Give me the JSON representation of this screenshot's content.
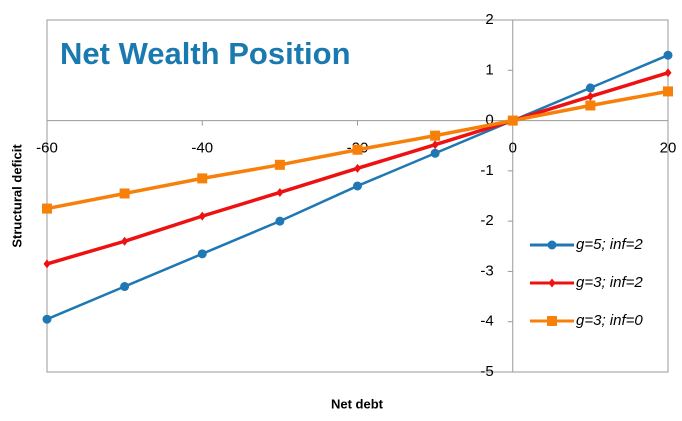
{
  "chart_data": {
    "type": "line",
    "title": "Net Wealth Position",
    "x_label": "Net debt",
    "y_label": "Structural deficit",
    "x": [
      -60,
      -50,
      -40,
      -30,
      -20,
      -10,
      0,
      10,
      20
    ],
    "series": [
      {
        "name": "g=5; inf=2",
        "color": "#1f77b4",
        "marker": "circle",
        "values": [
          -3.95,
          -3.3,
          -2.65,
          -2.0,
          -1.3,
          -0.65,
          0,
          0.65,
          1.3
        ]
      },
      {
        "name": "g=3; inf=2",
        "color": "#ee1111",
        "marker": "diamond",
        "values": [
          -2.85,
          -2.4,
          -1.9,
          -1.43,
          -0.95,
          -0.48,
          0,
          0.48,
          0.95
        ]
      },
      {
        "name": "g=3; inf=0",
        "color": "#f7800a",
        "marker": "square",
        "values": [
          -1.75,
          -1.45,
          -1.15,
          -0.88,
          -0.58,
          -0.3,
          0,
          0.3,
          0.58
        ]
      }
    ],
    "xlim": [
      -60,
      20
    ],
    "xticks": [
      -60,
      -40,
      -20,
      0,
      20
    ],
    "ylim": [
      -5,
      2
    ],
    "yticks": [
      -5,
      -4,
      -3,
      -2,
      -1,
      0,
      1,
      2
    ],
    "legend": "lower right"
  }
}
